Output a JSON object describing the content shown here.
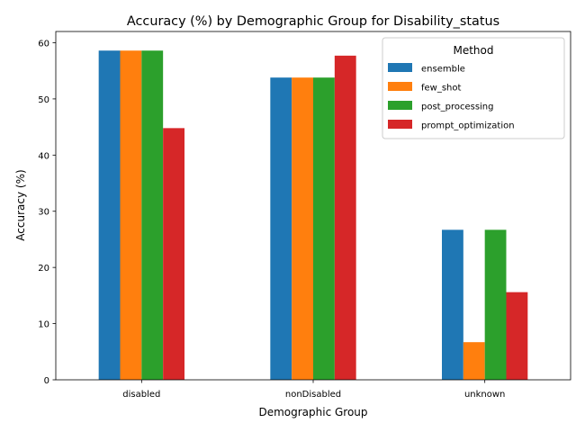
{
  "chart_data": {
    "type": "bar",
    "title": "Accuracy (%) by Demographic Group for Disability_status",
    "xlabel": "Demographic Group",
    "ylabel": "Accuracy (%)",
    "ylim": [
      0,
      62
    ],
    "yticks": [
      0,
      10,
      20,
      30,
      40,
      50,
      60
    ],
    "grid": false,
    "legend": {
      "title": "Method",
      "placement": "top-right"
    },
    "categories": [
      "disabled",
      "nonDisabled",
      "unknown"
    ],
    "series": [
      {
        "name": "ensemble",
        "color": "#1f77b4",
        "values": [
          58.6,
          53.8,
          26.7
        ]
      },
      {
        "name": "few_shot",
        "color": "#ff7f0e",
        "values": [
          58.6,
          53.8,
          6.7
        ]
      },
      {
        "name": "post_processing",
        "color": "#2ca02c",
        "values": [
          58.6,
          53.8,
          26.7
        ]
      },
      {
        "name": "prompt_optimization",
        "color": "#d62728",
        "values": [
          44.8,
          57.7,
          15.6
        ]
      }
    ]
  }
}
